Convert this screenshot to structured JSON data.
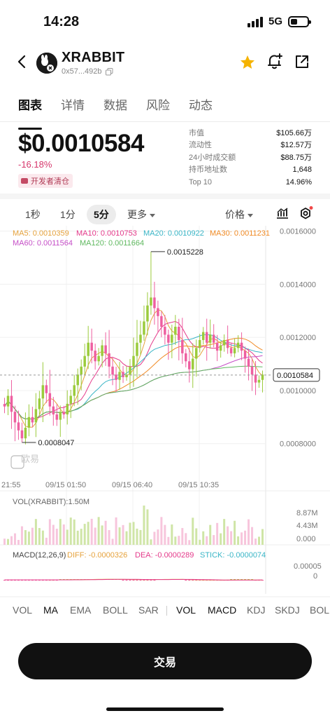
{
  "status": {
    "time": "14:28",
    "network": "5G"
  },
  "header": {
    "token_name": "XRABBIT",
    "address": "0x57...492b"
  },
  "tabs": [
    "图表",
    "详情",
    "数据",
    "风险",
    "动态"
  ],
  "price": {
    "value": "$0.0010584",
    "change": "-16.18%",
    "dev_badge": "开发者清仓"
  },
  "stats": [
    {
      "label": "市值",
      "value": "$105.66万"
    },
    {
      "label": "流动性",
      "value": "$12.57万"
    },
    {
      "label": "24小时成交额",
      "value": "$88.75万"
    },
    {
      "label": "持币地址数",
      "value": "1,648"
    },
    {
      "label": "Top 10",
      "value": "14.96%"
    }
  ],
  "intervals": {
    "s1": "1秒",
    "m1": "1分",
    "m5": "5分",
    "more": "更多",
    "price_type": "价格"
  },
  "ma_legend": {
    "ma5": "MA5: 0.0010359",
    "ma10": "MA10: 0.0010753",
    "ma20": "MA20: 0.0010922",
    "ma30": "MA30: 0.0011231",
    "ma60": "MA60: 0.0011564",
    "ma120": "MA120: 0.0011664"
  },
  "colors": {
    "up": "#9bcb3c",
    "down": "#ee5fa0",
    "ma5": "#e6a23c",
    "ma10": "#e4398a",
    "ma20": "#39b5c6",
    "ma30": "#f08a24",
    "ma60": "#c54fc7",
    "ma120": "#5fb85f",
    "accent_star": "#f5b301"
  },
  "chart_data": {
    "type": "candlestick",
    "y_ticks": [
      "0.0016000",
      "0.0014000",
      "0.0012000",
      "0.0010000",
      "0.0008000"
    ],
    "ylim": [
      0.00067,
      0.00162
    ],
    "x_ticks": [
      "21:55",
      "09/15 01:50",
      "09/15 06:40",
      "09/15 10:35"
    ],
    "high_label": "0.0015228",
    "low_label": "0.0008047",
    "current_price_label": "0.0010584",
    "close": [
      0.00094,
      0.00098,
      0.00092,
      0.00088,
      0.00085,
      0.00082,
      0.00086,
      0.0009,
      0.00088,
      0.00093,
      0.00097,
      0.00102,
      0.00099,
      0.00094,
      0.00091,
      0.00089,
      0.00092,
      0.00091,
      0.00095,
      0.00098,
      0.00102,
      0.00106,
      0.00109,
      0.00113,
      0.00118,
      0.00115,
      0.00111,
      0.00113,
      0.00117,
      0.00114,
      0.00109,
      0.00106,
      0.00104,
      0.00107,
      0.00105,
      0.00106,
      0.00109,
      0.00113,
      0.00118,
      0.00121,
      0.00126,
      0.00132,
      0.00135,
      0.00131,
      0.00128,
      0.00124,
      0.00121,
      0.00118,
      0.00121,
      0.00124,
      0.00119,
      0.00114,
      0.00111,
      0.00108,
      0.00112,
      0.00116,
      0.00119,
      0.00122,
      0.00118,
      0.00121,
      0.00118,
      0.00115,
      0.00117,
      0.00119,
      0.00116,
      0.00114,
      0.00116,
      0.00118,
      0.00115,
      0.00112,
      0.00109,
      0.00106,
      0.00103,
      0.00104,
      0.00106
    ],
    "volume_label": "VOL(XRABBIT):1.50M",
    "volume_ticks": [
      "8.87M",
      "4.43M",
      "0.000"
    ],
    "macd_label": "MACD(12,26,9)",
    "macd_diff": "DIFF: -0.0000326",
    "macd_dea": "DEA: -0.0000289",
    "macd_stick": "STICK: -0.0000074",
    "macd_ticks": [
      "0.00005",
      "0"
    ]
  },
  "indicator_tabs": [
    "VOL",
    "MA",
    "EMA",
    "BOLL",
    "SAR",
    "VOL",
    "MACD",
    "KDJ",
    "SKDJ",
    "BOLL"
  ],
  "trade_button": "交易"
}
